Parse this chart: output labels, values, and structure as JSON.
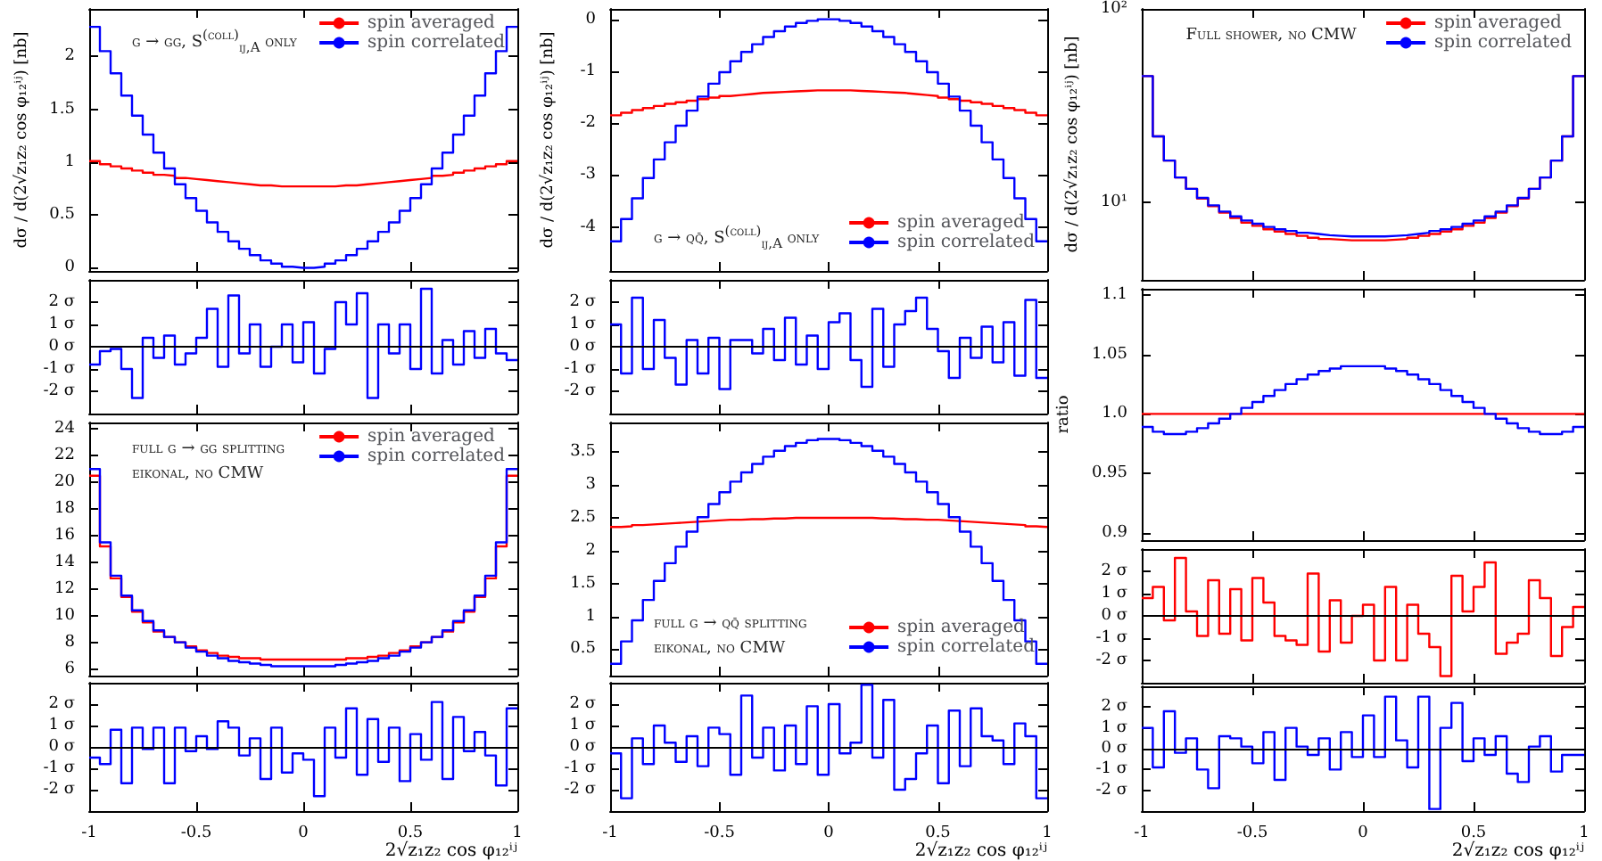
{
  "chart_data": [
    {
      "type": "histogram",
      "ylabel": "dσ / d(2√z₁z₂ cos φ₁₂ⁱʲ) [nb]",
      "annotations": [
        "g → gg, S$^{(coll)}$$_{ij,A}$ only"
      ],
      "legend": "top right",
      "tick_labels": "y",
      "xlim": [
        -1,
        1
      ],
      "xticks": [
        -1,
        -0.5,
        0,
        0.5,
        1
      ],
      "ylim": [
        -0.03,
        2.45
      ],
      "yticks": [
        0,
        0.5,
        1,
        1.5,
        2
      ],
      "bins": [
        -1,
        -0.95,
        -0.9,
        -0.85,
        -0.8,
        -0.75,
        -0.7,
        -0.65,
        -0.6,
        -0.55,
        -0.5,
        -0.45,
        -0.4,
        -0.35,
        -0.3,
        -0.25,
        -0.2,
        -0.15,
        -0.1,
        -0.05,
        0,
        0.05,
        0.1,
        0.15,
        0.2,
        0.25,
        0.3,
        0.35,
        0.4,
        0.45,
        0.5,
        0.55,
        0.6,
        0.65,
        0.7,
        0.75,
        0.8,
        0.85,
        0.9,
        0.95,
        1
      ],
      "series": [
        {
          "name": "spin averaged",
          "color": "#ff0000",
          "values": [
            1.01,
            0.98,
            0.96,
            0.94,
            0.92,
            0.9,
            0.88,
            0.87,
            0.85,
            0.84,
            0.83,
            0.82,
            0.81,
            0.8,
            0.79,
            0.78,
            0.78,
            0.77,
            0.77,
            0.77,
            0.77,
            0.77,
            0.77,
            0.78,
            0.78,
            0.79,
            0.8,
            0.81,
            0.82,
            0.83,
            0.84,
            0.85,
            0.87,
            0.88,
            0.9,
            0.92,
            0.94,
            0.96,
            0.98,
            1.01
          ]
        },
        {
          "name": "spin correlated",
          "color": "#0000ff",
          "values": [
            2.28,
            2.05,
            1.84,
            1.63,
            1.44,
            1.26,
            1.09,
            0.94,
            0.79,
            0.66,
            0.54,
            0.43,
            0.34,
            0.25,
            0.18,
            0.12,
            0.07,
            0.04,
            0.01,
            0.0,
            0.0,
            0.01,
            0.04,
            0.07,
            0.12,
            0.18,
            0.25,
            0.34,
            0.43,
            0.54,
            0.66,
            0.79,
            0.94,
            1.09,
            1.26,
            1.44,
            1.63,
            1.84,
            2.05,
            2.28
          ]
        }
      ]
    },
    {
      "type": "histogram",
      "tick_labels": "y",
      "xlim": [
        -1,
        1
      ],
      "xticks": [
        -1,
        -0.5,
        0,
        0.5,
        1
      ],
      "ylim": [
        -3,
        3
      ],
      "yticks": [
        {
          "value": -2,
          "label": "-2 σ"
        },
        {
          "value": -1,
          "label": "-1 σ"
        },
        {
          "value": 0,
          "label": "0 σ"
        },
        {
          "value": 1,
          "label": "1 σ"
        },
        {
          "value": 2,
          "label": "2 σ"
        }
      ],
      "ref_lines": [
        {
          "axis": "y",
          "value": 0,
          "color": "#000000"
        }
      ],
      "bins": [
        -1,
        -0.95,
        -0.9,
        -0.85,
        -0.8,
        -0.75,
        -0.7,
        -0.65,
        -0.6,
        -0.55,
        -0.5,
        -0.45,
        -0.4,
        -0.35,
        -0.3,
        -0.25,
        -0.2,
        -0.15,
        -0.1,
        -0.05,
        0,
        0.05,
        0.1,
        0.15,
        0.2,
        0.25,
        0.3,
        0.35,
        0.4,
        0.45,
        0.5,
        0.55,
        0.6,
        0.65,
        0.7,
        0.75,
        0.8,
        0.85,
        0.9,
        0.95,
        1
      ],
      "series": [
        {
          "color": "#0000ff",
          "values": [
            -0.8,
            -0.2,
            -0.1,
            -1.0,
            -2.3,
            0.4,
            -0.5,
            0.5,
            -0.8,
            -0.3,
            0.4,
            1.7,
            -0.9,
            2.3,
            -0.3,
            1.0,
            -0.9,
            0.0,
            1.0,
            -0.7,
            1.1,
            -1.2,
            -0.1,
            2.0,
            1.0,
            2.4,
            -2.3,
            1.0,
            -0.3,
            1.0,
            -1.0,
            2.6,
            -1.2,
            0.3,
            -0.8,
            0.7,
            -0.5,
            0.8,
            -0.3,
            -0.6
          ]
        }
      ]
    },
    {
      "type": "histogram",
      "annotations": [
        "full g → gg splitting",
        "eikonal, no CMW"
      ],
      "legend": "top right",
      "tick_labels": "y",
      "xlim": [
        -1,
        1
      ],
      "xticks": [
        -1,
        -0.5,
        0,
        0.5,
        1
      ],
      "ylim": [
        5.5,
        24.5
      ],
      "yticks": [
        6,
        8,
        10,
        12,
        14,
        16,
        18,
        20,
        22,
        24
      ],
      "bins": [
        -1,
        -0.95,
        -0.9,
        -0.85,
        -0.8,
        -0.75,
        -0.7,
        -0.65,
        -0.6,
        -0.55,
        -0.5,
        -0.45,
        -0.4,
        -0.35,
        -0.3,
        -0.25,
        -0.2,
        -0.15,
        -0.1,
        -0.05,
        0,
        0.05,
        0.1,
        0.15,
        0.2,
        0.25,
        0.3,
        0.35,
        0.4,
        0.45,
        0.5,
        0.55,
        0.6,
        0.65,
        0.7,
        0.75,
        0.8,
        0.85,
        0.9,
        0.95,
        1
      ],
      "series": [
        {
          "name": "spin averaged",
          "color": "#ff0000",
          "values": [
            20.5,
            15.2,
            12.8,
            11.4,
            10.3,
            9.5,
            8.8,
            8.4,
            8.0,
            7.7,
            7.4,
            7.2,
            7.0,
            6.9,
            6.8,
            6.8,
            6.7,
            6.7,
            6.7,
            6.7,
            6.7,
            6.7,
            6.7,
            6.7,
            6.8,
            6.8,
            6.9,
            7.0,
            7.2,
            7.4,
            7.7,
            8.0,
            8.4,
            8.8,
            9.5,
            10.3,
            11.4,
            12.8,
            15.2,
            20.5
          ]
        },
        {
          "name": "spin correlated",
          "color": "#0000ff",
          "values": [
            21.0,
            15.5,
            13.0,
            11.5,
            10.4,
            9.6,
            8.9,
            8.4,
            8.0,
            7.6,
            7.3,
            7.0,
            6.8,
            6.6,
            6.5,
            6.4,
            6.3,
            6.2,
            6.2,
            6.2,
            6.2,
            6.2,
            6.2,
            6.3,
            6.4,
            6.5,
            6.6,
            6.8,
            7.0,
            7.3,
            7.6,
            8.0,
            8.4,
            8.9,
            9.6,
            10.4,
            11.5,
            13.0,
            15.5,
            21.0
          ]
        }
      ]
    },
    {
      "type": "histogram",
      "xlabel": "2√z₁z₂ cos φ₁₂ⁱʲ",
      "xlim": [
        -1,
        1
      ],
      "xticks": [
        -1,
        -0.5,
        0,
        0.5,
        1
      ],
      "ylim": [
        -3,
        3
      ],
      "yticks": [
        {
          "value": -2,
          "label": "-2 σ"
        },
        {
          "value": -1,
          "label": "-1 σ"
        },
        {
          "value": 0,
          "label": "0 σ"
        },
        {
          "value": 1,
          "label": "1 σ"
        },
        {
          "value": 2,
          "label": "2 σ"
        }
      ],
      "ref_lines": [
        {
          "axis": "y",
          "value": 0,
          "color": "#000000"
        }
      ],
      "bins": [
        -1,
        -0.95,
        -0.9,
        -0.85,
        -0.8,
        -0.75,
        -0.7,
        -0.65,
        -0.6,
        -0.55,
        -0.5,
        -0.45,
        -0.4,
        -0.35,
        -0.3,
        -0.25,
        -0.2,
        -0.15,
        -0.1,
        -0.05,
        0,
        0.05,
        0.1,
        0.15,
        0.2,
        0.25,
        0.3,
        0.35,
        0.4,
        0.45,
        0.5,
        0.55,
        0.6,
        0.65,
        0.7,
        0.75,
        0.8,
        0.85,
        0.9,
        0.95,
        1
      ],
      "series": [
        {
          "color": "#0000ff",
          "values": [
            -0.5,
            -0.8,
            0.8,
            -1.7,
            0.9,
            -0.1,
            0.9,
            -1.7,
            0.9,
            -0.2,
            0.5,
            -0.1,
            1.2,
            0.9,
            -0.4,
            0.4,
            -1.5,
            0.9,
            -1.2,
            -0.3,
            -0.6,
            -2.3,
            0.9,
            -0.5,
            1.8,
            -1.3,
            1.3,
            -0.7,
            0.9,
            -1.6,
            0.6,
            -0.6,
            2.1,
            -1.5,
            1.4,
            -0.2,
            0.7,
            -0.4,
            -1.8,
            1.8
          ]
        }
      ]
    },
    {
      "type": "histogram",
      "ylabel": "dσ / d(2√z₁z₂ cos φ₁₂ⁱʲ) [nb]",
      "annotations": [
        "g → qq̄, S$^{(coll)}$$_{ij,A}$ only"
      ],
      "legend": "bottom right",
      "tick_labels": "y",
      "xlim": [
        -1,
        1
      ],
      "xticks": [
        -1,
        -0.5,
        0,
        0.5,
        1
      ],
      "ylim": [
        -4.85,
        0.2
      ],
      "yticks": [
        -4,
        -3,
        -2,
        -1,
        0
      ],
      "bins": [
        -1,
        -0.95,
        -0.9,
        -0.85,
        -0.8,
        -0.75,
        -0.7,
        -0.65,
        -0.6,
        -0.55,
        -0.5,
        -0.45,
        -0.4,
        -0.35,
        -0.3,
        -0.25,
        -0.2,
        -0.15,
        -0.1,
        -0.05,
        0,
        0.05,
        0.1,
        0.15,
        0.2,
        0.25,
        0.3,
        0.35,
        0.4,
        0.45,
        0.5,
        0.55,
        0.6,
        0.65,
        0.7,
        0.75,
        0.8,
        0.85,
        0.9,
        0.95,
        1
      ],
      "series": [
        {
          "name": "spin averaged",
          "color": "#ff0000",
          "values": [
            -1.85,
            -1.8,
            -1.75,
            -1.71,
            -1.67,
            -1.63,
            -1.6,
            -1.57,
            -1.54,
            -1.51,
            -1.48,
            -1.46,
            -1.44,
            -1.42,
            -1.41,
            -1.4,
            -1.39,
            -1.38,
            -1.37,
            -1.37,
            -1.37,
            -1.37,
            -1.38,
            -1.39,
            -1.4,
            -1.41,
            -1.42,
            -1.44,
            -1.46,
            -1.48,
            -1.51,
            -1.54,
            -1.57,
            -1.6,
            -1.63,
            -1.67,
            -1.71,
            -1.75,
            -1.8,
            -1.85
          ]
        },
        {
          "name": "spin correlated",
          "color": "#0000ff",
          "values": [
            -4.28,
            -3.85,
            -3.45,
            -3.06,
            -2.7,
            -2.37,
            -2.05,
            -1.76,
            -1.49,
            -1.24,
            -1.02,
            -0.81,
            -0.63,
            -0.48,
            -0.34,
            -0.23,
            -0.14,
            -0.07,
            -0.03,
            0.0,
            0.0,
            -0.03,
            -0.07,
            -0.14,
            -0.23,
            -0.34,
            -0.48,
            -0.63,
            -0.81,
            -1.02,
            -1.24,
            -1.49,
            -1.76,
            -2.05,
            -2.37,
            -2.7,
            -3.06,
            -3.45,
            -3.85,
            -4.28
          ]
        }
      ]
    },
    {
      "type": "histogram",
      "tick_labels": "y",
      "xlim": [
        -1,
        1
      ],
      "xticks": [
        -1,
        -0.5,
        0,
        0.5,
        1
      ],
      "ylim": [
        -3,
        3
      ],
      "yticks": [
        {
          "value": -2,
          "label": "-2 σ"
        },
        {
          "value": -1,
          "label": "-1 σ"
        },
        {
          "value": 0,
          "label": "0 σ"
        },
        {
          "value": 1,
          "label": "1 σ"
        },
        {
          "value": 2,
          "label": "2 σ"
        }
      ],
      "ref_lines": [
        {
          "axis": "y",
          "value": 0,
          "color": "#000000"
        }
      ],
      "bins": [
        -1,
        -0.95,
        -0.9,
        -0.85,
        -0.8,
        -0.75,
        -0.7,
        -0.65,
        -0.6,
        -0.55,
        -0.5,
        -0.45,
        -0.4,
        -0.35,
        -0.3,
        -0.25,
        -0.2,
        -0.15,
        -0.1,
        -0.05,
        0,
        0.05,
        0.1,
        0.15,
        0.2,
        0.25,
        0.3,
        0.35,
        0.4,
        0.45,
        0.5,
        0.55,
        0.6,
        0.65,
        0.7,
        0.75,
        0.8,
        0.85,
        0.9,
        0.95,
        1
      ],
      "series": [
        {
          "color": "#0000ff",
          "values": [
            1.0,
            -1.2,
            2.2,
            -1.0,
            1.2,
            -0.5,
            -1.7,
            0.3,
            -1.2,
            0.4,
            -1.9,
            0.3,
            0.3,
            -0.3,
            0.8,
            -0.6,
            1.3,
            -0.8,
            0.5,
            -1.0,
            1.1,
            1.5,
            -0.6,
            -1.8,
            1.7,
            -0.9,
            1.0,
            1.6,
            2.2,
            0.8,
            -0.2,
            -1.4,
            0.4,
            -0.5,
            0.9,
            -0.7,
            1.1,
            -1.3,
            2.1,
            -1.4
          ]
        }
      ]
    },
    {
      "type": "histogram",
      "annotations": [
        "full g → qq̄ splitting",
        "eikonal, no CMW"
      ],
      "legend": "bottom right",
      "tick_labels": "y",
      "xlim": [
        -1,
        1
      ],
      "xticks": [
        -1,
        -0.5,
        0,
        0.5,
        1
      ],
      "ylim": [
        0.1,
        3.95
      ],
      "yticks": [
        0.5,
        1,
        1.5,
        2,
        2.5,
        3,
        3.5
      ],
      "bins": [
        -1,
        -0.95,
        -0.9,
        -0.85,
        -0.8,
        -0.75,
        -0.7,
        -0.65,
        -0.6,
        -0.55,
        -0.5,
        -0.45,
        -0.4,
        -0.35,
        -0.3,
        -0.25,
        -0.2,
        -0.15,
        -0.1,
        -0.05,
        0,
        0.05,
        0.1,
        0.15,
        0.2,
        0.25,
        0.3,
        0.35,
        0.4,
        0.45,
        0.5,
        0.55,
        0.6,
        0.65,
        0.7,
        0.75,
        0.8,
        0.85,
        0.9,
        0.95,
        1
      ],
      "series": [
        {
          "name": "spin averaged",
          "color": "#ff0000",
          "values": [
            2.36,
            2.37,
            2.39,
            2.4,
            2.41,
            2.42,
            2.43,
            2.44,
            2.45,
            2.46,
            2.47,
            2.47,
            2.48,
            2.48,
            2.49,
            2.49,
            2.5,
            2.5,
            2.5,
            2.5,
            2.5,
            2.5,
            2.5,
            2.5,
            2.49,
            2.49,
            2.48,
            2.48,
            2.47,
            2.47,
            2.46,
            2.45,
            2.44,
            2.43,
            2.42,
            2.41,
            2.4,
            2.39,
            2.37,
            2.36
          ]
        },
        {
          "name": "spin correlated",
          "color": "#0000ff",
          "values": [
            0.28,
            0.62,
            0.94,
            1.25,
            1.54,
            1.81,
            2.06,
            2.29,
            2.51,
            2.71,
            2.89,
            3.05,
            3.19,
            3.32,
            3.43,
            3.52,
            3.59,
            3.64,
            3.68,
            3.7,
            3.7,
            3.68,
            3.64,
            3.59,
            3.52,
            3.43,
            3.32,
            3.19,
            3.05,
            2.89,
            2.71,
            2.51,
            2.29,
            2.06,
            1.81,
            1.54,
            1.25,
            0.94,
            0.62,
            0.28
          ]
        }
      ]
    },
    {
      "type": "histogram",
      "xlabel": "2√z₁z₂ cos φ₁₂ⁱʲ",
      "xlim": [
        -1,
        1
      ],
      "xticks": [
        -1,
        -0.5,
        0,
        0.5,
        1
      ],
      "ylim": [
        -3,
        3
      ],
      "yticks": [
        {
          "value": -2,
          "label": "-2 σ"
        },
        {
          "value": -1,
          "label": "-1 σ"
        },
        {
          "value": 0,
          "label": "0 σ"
        },
        {
          "value": 1,
          "label": "1 σ"
        },
        {
          "value": 2,
          "label": "2 σ"
        }
      ],
      "ref_lines": [
        {
          "axis": "y",
          "value": 0,
          "color": "#000000"
        }
      ],
      "bins": [
        -1,
        -0.95,
        -0.9,
        -0.85,
        -0.8,
        -0.75,
        -0.7,
        -0.65,
        -0.6,
        -0.55,
        -0.5,
        -0.45,
        -0.4,
        -0.35,
        -0.3,
        -0.25,
        -0.2,
        -0.15,
        -0.1,
        -0.05,
        0,
        0.05,
        0.1,
        0.15,
        0.2,
        0.25,
        0.3,
        0.35,
        0.4,
        0.45,
        0.5,
        0.55,
        0.6,
        0.65,
        0.7,
        0.75,
        0.8,
        0.85,
        0.9,
        0.95,
        1
      ],
      "series": [
        {
          "color": "#0000ff",
          "values": [
            -0.3,
            -2.4,
            0.4,
            -0.8,
            1.0,
            0.2,
            -0.7,
            0.5,
            -0.9,
            0.9,
            0.6,
            -1.3,
            2.4,
            -0.5,
            0.9,
            -1.1,
            1.0,
            -0.8,
            1.9,
            -1.3,
            2.0,
            -0.3,
            0.2,
            2.9,
            -0.5,
            2.2,
            -2.0,
            -1.5,
            -0.3,
            1.0,
            -1.7,
            1.7,
            -0.9,
            1.8,
            0.5,
            0.3,
            -0.8,
            1.1,
            0.5,
            -2.4
          ]
        }
      ]
    },
    {
      "type": "histogram",
      "ylabel": "dσ / d(2√z₁z₂ cos φ₁₂ⁱʲ) [nb]",
      "annotations": [
        "Full shower, no CMW"
      ],
      "legend": "top right",
      "tick_labels": "y",
      "log": "y",
      "xlim": [
        -1,
        1
      ],
      "xticks": [
        -1,
        -0.5,
        0,
        0.5,
        1
      ],
      "ylim": [
        4,
        100
      ],
      "yticks": [
        {
          "value": 10,
          "label": "10¹"
        },
        {
          "value": 100,
          "label": "10²"
        }
      ],
      "bins": [
        -1,
        -0.95,
        -0.9,
        -0.85,
        -0.8,
        -0.75,
        -0.7,
        -0.65,
        -0.6,
        -0.55,
        -0.5,
        -0.45,
        -0.4,
        -0.35,
        -0.3,
        -0.25,
        -0.2,
        -0.15,
        -0.1,
        -0.05,
        0,
        0.05,
        0.1,
        0.15,
        0.2,
        0.25,
        0.3,
        0.35,
        0.4,
        0.45,
        0.5,
        0.55,
        0.6,
        0.65,
        0.7,
        0.75,
        0.8,
        0.85,
        0.9,
        0.95,
        1
      ],
      "series": [
        {
          "name": "spin averaged",
          "color": "#ff0000",
          "values": [
            45,
            22,
            16.5,
            13.5,
            11.8,
            10.5,
            9.6,
            8.9,
            8.35,
            7.9,
            7.6,
            7.3,
            7.1,
            6.9,
            6.75,
            6.6,
            6.5,
            6.45,
            6.4,
            6.4,
            6.4,
            6.4,
            6.45,
            6.5,
            6.6,
            6.75,
            6.9,
            7.1,
            7.3,
            7.6,
            7.9,
            8.35,
            8.9,
            9.6,
            10.5,
            11.8,
            13.5,
            16.5,
            22,
            45
          ]
        },
        {
          "name": "spin correlated",
          "color": "#0000ff",
          "values": [
            45,
            22,
            16.5,
            13.5,
            11.8,
            10.6,
            9.7,
            9.0,
            8.5,
            8.1,
            7.8,
            7.5,
            7.3,
            7.15,
            7.0,
            6.9,
            6.8,
            6.75,
            6.7,
            6.7,
            6.7,
            6.7,
            6.75,
            6.8,
            6.9,
            7.0,
            7.15,
            7.3,
            7.5,
            7.8,
            8.1,
            8.5,
            9.0,
            9.7,
            10.6,
            11.8,
            13.5,
            16.5,
            22,
            45
          ]
        }
      ]
    },
    {
      "type": "histogram",
      "ylabel": "ratio",
      "tick_labels": "y",
      "xlim": [
        -1,
        1
      ],
      "xticks": [
        -1,
        -0.5,
        0,
        0.5,
        1
      ],
      "ylim": [
        0.894,
        1.105
      ],
      "yticks": [
        0.9,
        0.95,
        {
          "value": 1,
          "label": "1.0"
        },
        1.05,
        1.1
      ],
      "bins": [
        -1,
        -0.95,
        -0.9,
        -0.85,
        -0.8,
        -0.75,
        -0.7,
        -0.65,
        -0.6,
        -0.55,
        -0.5,
        -0.45,
        -0.4,
        -0.35,
        -0.3,
        -0.25,
        -0.2,
        -0.15,
        -0.1,
        -0.05,
        0,
        0.05,
        0.1,
        0.15,
        0.2,
        0.25,
        0.3,
        0.35,
        0.4,
        0.45,
        0.5,
        0.55,
        0.6,
        0.65,
        0.7,
        0.75,
        0.8,
        0.85,
        0.9,
        0.95,
        1
      ],
      "series": [
        {
          "color": "#ff0000",
          "values": [
            1,
            1,
            1,
            1,
            1,
            1,
            1,
            1,
            1,
            1,
            1,
            1,
            1,
            1,
            1,
            1,
            1,
            1,
            1,
            1,
            1,
            1,
            1,
            1,
            1,
            1,
            1,
            1,
            1,
            1,
            1,
            1,
            1,
            1,
            1,
            1,
            1,
            1,
            1,
            1
          ]
        },
        {
          "color": "#0000ff",
          "values": [
            0.989,
            0.985,
            0.983,
            0.983,
            0.985,
            0.988,
            0.992,
            0.996,
            1.0,
            1.005,
            1.01,
            1.015,
            1.02,
            1.025,
            1.029,
            1.033,
            1.036,
            1.038,
            1.04,
            1.04,
            1.04,
            1.04,
            1.038,
            1.036,
            1.033,
            1.029,
            1.025,
            1.02,
            1.015,
            1.01,
            1.005,
            1.0,
            0.996,
            0.992,
            0.988,
            0.985,
            0.983,
            0.983,
            0.985,
            0.989
          ]
        }
      ]
    },
    {
      "type": "histogram",
      "tick_labels": "y",
      "xlim": [
        -1,
        1
      ],
      "xticks": [
        -1,
        -0.5,
        0,
        0.5,
        1
      ],
      "ylim": [
        -3,
        3
      ],
      "yticks": [
        {
          "value": -2,
          "label": "-2 σ"
        },
        {
          "value": -1,
          "label": "-1 σ"
        },
        {
          "value": 0,
          "label": "0 σ"
        },
        {
          "value": 1,
          "label": "1 σ"
        },
        {
          "value": 2,
          "label": "2 σ"
        }
      ],
      "ref_lines": [
        {
          "axis": "y",
          "value": 0,
          "color": "#000000"
        }
      ],
      "bins": [
        -1,
        -0.95,
        -0.9,
        -0.85,
        -0.8,
        -0.75,
        -0.7,
        -0.65,
        -0.6,
        -0.55,
        -0.5,
        -0.45,
        -0.4,
        -0.35,
        -0.3,
        -0.25,
        -0.2,
        -0.15,
        -0.1,
        -0.05,
        0,
        0.05,
        0.1,
        0.15,
        0.2,
        0.25,
        0.3,
        0.35,
        0.4,
        0.45,
        0.5,
        0.55,
        0.6,
        0.65,
        0.7,
        0.75,
        0.8,
        0.85,
        0.9,
        0.95,
        1
      ],
      "series": [
        {
          "color": "#ff0000",
          "values": [
            0.8,
            1.3,
            -0.2,
            2.6,
            0.2,
            -0.9,
            1.6,
            -0.8,
            1.2,
            -1.1,
            1.7,
            0.6,
            -0.9,
            -1.1,
            -1.3,
            1.9,
            -1.6,
            0.7,
            -1.2,
            0.0,
            0.5,
            -2.0,
            1.3,
            -2.0,
            0.5,
            -0.8,
            -1.4,
            -2.7,
            1.8,
            0.2,
            1.3,
            2.4,
            -1.7,
            -1.2,
            -0.8,
            1.6,
            0.8,
            -1.8,
            -0.5,
            0.4
          ]
        }
      ]
    },
    {
      "type": "histogram",
      "xlabel": "2√z₁z₂ cos φ₁₂ⁱʲ",
      "xlim": [
        -1,
        1
      ],
      "xticks": [
        -1,
        -0.5,
        0,
        0.5,
        1
      ],
      "ylim": [
        -3,
        3
      ],
      "yticks": [
        {
          "value": -2,
          "label": "-2 σ"
        },
        {
          "value": -1,
          "label": "-1 σ"
        },
        {
          "value": 0,
          "label": "0 σ"
        },
        {
          "value": 1,
          "label": "1 σ"
        },
        {
          "value": 2,
          "label": "2 σ"
        }
      ],
      "ref_lines": [
        {
          "axis": "y",
          "value": 0,
          "color": "#000000"
        }
      ],
      "bins": [
        -1,
        -0.95,
        -0.9,
        -0.85,
        -0.8,
        -0.75,
        -0.7,
        -0.65,
        -0.6,
        -0.55,
        -0.5,
        -0.45,
        -0.4,
        -0.35,
        -0.3,
        -0.25,
        -0.2,
        -0.15,
        -0.1,
        -0.05,
        0,
        0.05,
        0.1,
        0.15,
        0.2,
        0.25,
        0.3,
        0.35,
        0.4,
        0.45,
        0.5,
        0.55,
        0.6,
        0.65,
        0.7,
        0.75,
        0.8,
        0.85,
        0.9,
        0.95,
        1
      ],
      "series": [
        {
          "color": "#0000ff",
          "values": [
            1.0,
            -0.9,
            1.8,
            -0.2,
            0.5,
            -1.0,
            -1.9,
            0.6,
            0.5,
            0.1,
            -0.7,
            0.8,
            -1.5,
            1.0,
            0.1,
            -0.3,
            0.5,
            -1.0,
            0.8,
            -0.4,
            1.6,
            -0.4,
            2.5,
            0.4,
            -0.9,
            2.5,
            -2.9,
            1.0,
            2.2,
            -0.6,
            0.5,
            -0.3,
            0.6,
            -1.2,
            -1.6,
            0.1,
            0.6,
            -1.1,
            -0.3,
            -0.3
          ]
        }
      ]
    }
  ]
}
